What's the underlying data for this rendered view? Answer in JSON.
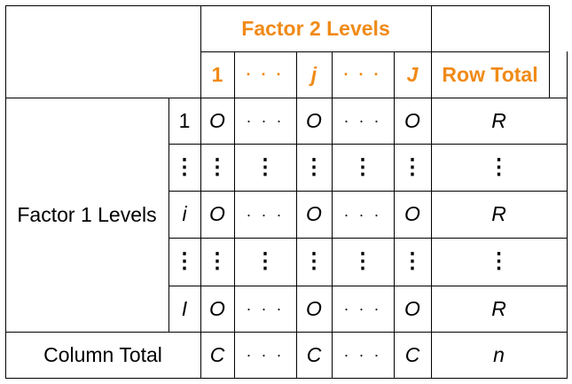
{
  "header": {
    "factor2_title": "Factor 2 Levels",
    "col_labels": [
      "1",
      "· · ·",
      "j",
      "· · ·",
      "J"
    ],
    "row_total_label": "Row Total"
  },
  "row_header": {
    "factor1_label": "Factor 1 Levels",
    "column_total_label": "Column Total"
  },
  "rows": [
    {
      "label": "1",
      "cells": [
        "O",
        "· · ·",
        "O",
        "· · ·",
        "O"
      ],
      "total": "R"
    },
    {
      "label": "⋮",
      "cells": [
        "⋮",
        "⋮",
        "⋮",
        "⋮",
        "⋮"
      ],
      "total": "⋮"
    },
    {
      "label": "i",
      "cells": [
        "O",
        "· · ·",
        "O",
        "· · ·",
        "O"
      ],
      "total": "R"
    },
    {
      "label": "⋮",
      "cells": [
        "⋮",
        "⋮",
        "⋮",
        "⋮",
        "⋮"
      ],
      "total": "⋮"
    },
    {
      "label": "I",
      "cells": [
        "O",
        "· · ·",
        "O",
        "· · ·",
        "O"
      ],
      "total": "R"
    }
  ],
  "column_totals": {
    "cells": [
      "C",
      "· · ·",
      "C",
      "· · ·",
      "C"
    ],
    "grand_total": "n"
  },
  "colors": {
    "accent": "#F08A17",
    "line": "#000000"
  }
}
